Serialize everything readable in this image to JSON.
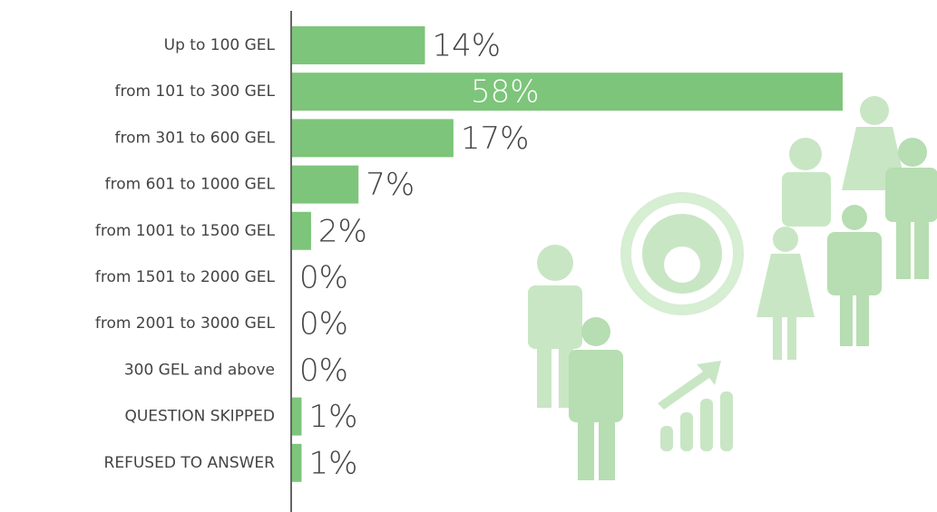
{
  "chart_data": {
    "type": "bar",
    "orientation": "horizontal",
    "categories": [
      "Up to 100 GEL",
      "from 101 to 300 GEL",
      "from 301 to 600 GEL",
      "from 601 to 1000 GEL",
      "from 1001 to 1500 GEL",
      "from 1501 to 2000 GEL",
      "from 2001 to 3000 GEL",
      "300 GEL and above",
      "QUESTION SKIPPED",
      "REFUSED TO ANSWER"
    ],
    "values": [
      14,
      58,
      17,
      7,
      2,
      0,
      0,
      0,
      1,
      1
    ],
    "value_labels": [
      "14%",
      "58%",
      "17%",
      "7%",
      "2%",
      "0%",
      "0%",
      "0%",
      "1%",
      "1%"
    ],
    "color": "#7dc57a"
  }
}
